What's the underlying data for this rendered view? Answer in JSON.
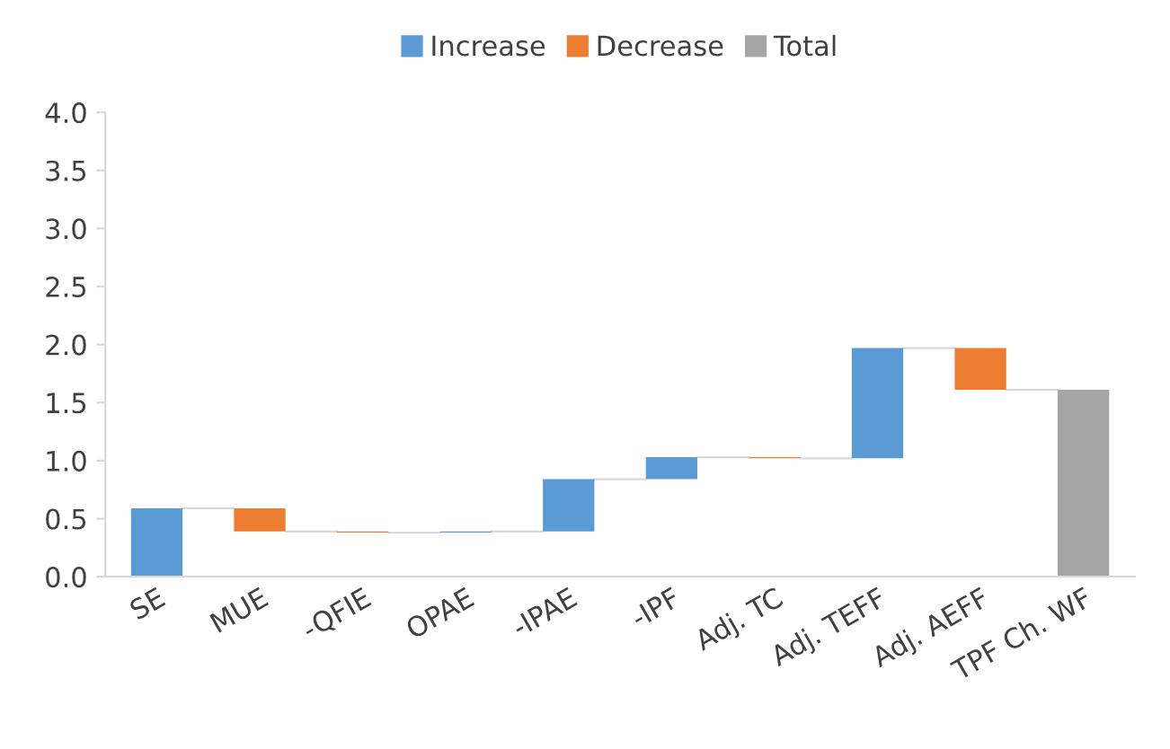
{
  "chart_data": {
    "type": "bar",
    "categories": [
      "SE",
      "MUE",
      "-QFIE",
      "OPAE",
      "-IPAE",
      "-IPF",
      "Adj. TC",
      "Adj. TEFF",
      "Adj. AEFF",
      "TPF Ch. WF"
    ],
    "series": [
      {
        "name": "Increase",
        "color": "#5b9bd5",
        "values": [
          0.59,
          null,
          null,
          0.01,
          0.45,
          0.19,
          null,
          0.95,
          null,
          null
        ],
        "base": [
          0,
          null,
          null,
          0.38,
          0.39,
          0.84,
          null,
          1.02,
          null,
          null
        ]
      },
      {
        "name": "Decrease",
        "color": "#ed7d31",
        "values": [
          null,
          0.2,
          0.01,
          null,
          null,
          null,
          0.01,
          null,
          0.36,
          null
        ],
        "base": [
          null,
          0.39,
          0.38,
          null,
          null,
          null,
          1.02,
          null,
          1.61,
          null
        ]
      },
      {
        "name": "Total",
        "color": "#a5a5a5",
        "values": [
          null,
          null,
          null,
          null,
          null,
          null,
          null,
          null,
          null,
          1.61
        ],
        "base": [
          null,
          null,
          null,
          null,
          null,
          null,
          null,
          null,
          null,
          0
        ]
      }
    ],
    "ylim": [
      0,
      4
    ],
    "yticks": [
      {
        "value": 0,
        "label": "0.0"
      },
      {
        "value": 0.5,
        "label": "0.5"
      },
      {
        "value": 1,
        "label": "1.0"
      },
      {
        "value": 1.5,
        "label": "1.5"
      },
      {
        "value": 2,
        "label": "2.0"
      },
      {
        "value": 2.5,
        "label": "2.5"
      },
      {
        "value": 3,
        "label": "3.0"
      },
      {
        "value": 3.5,
        "label": "3.5"
      },
      {
        "value": 4,
        "label": "4.0"
      }
    ],
    "grid": false,
    "legend": "top"
  }
}
